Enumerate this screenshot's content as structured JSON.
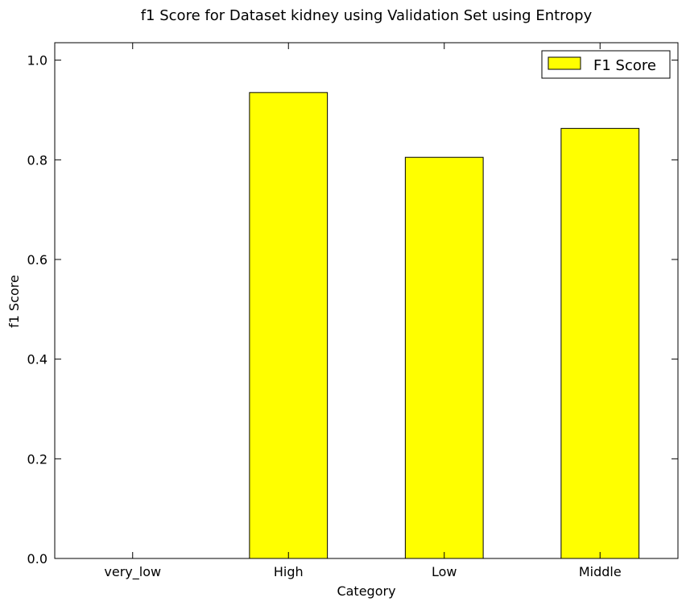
{
  "chart_data": {
    "type": "bar",
    "title": "f1 Score for Dataset kidney using Validation Set using Entropy",
    "xlabel": "Category",
    "ylabel": "f1 Score",
    "categories": [
      "very_low",
      "High",
      "Low",
      "Middle"
    ],
    "series": [
      {
        "name": "F1 Score",
        "values": [
          0.0,
          0.935,
          0.805,
          0.863
        ],
        "color": "#ffff00"
      }
    ],
    "ylim": [
      0,
      1.035
    ],
    "yticks": [
      0.0,
      0.2,
      0.4,
      0.6,
      0.8,
      1.0
    ],
    "ytick_labels": [
      "0.0",
      "0.2",
      "0.4",
      "0.6",
      "0.8",
      "1.0"
    ],
    "grid": false,
    "legend_position": "top-right"
  }
}
